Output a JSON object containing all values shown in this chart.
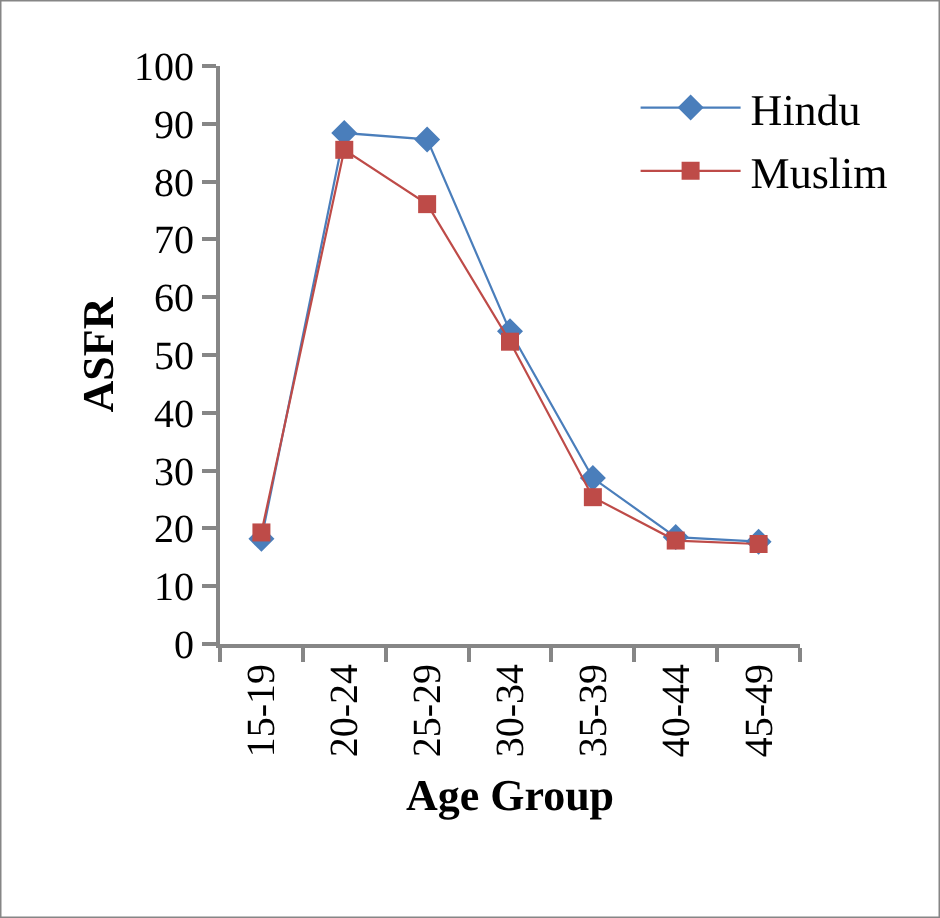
{
  "chart_data": {
    "type": "line",
    "xlabel": "Age Group",
    "ylabel": "ASFR",
    "categories": [
      "15-19",
      "20-24",
      "25-29",
      "30-34",
      "35-39",
      "40-44",
      "45-49"
    ],
    "series": [
      {
        "name": "Hindu",
        "color": "#4a7ebb",
        "marker": "diamond",
        "values": [
          18.2,
          88.4,
          87.3,
          54.1,
          28.7,
          18.5,
          17.7
        ]
      },
      {
        "name": "Muslim",
        "color": "#be4b48",
        "marker": "square",
        "values": [
          19.3,
          85.5,
          76.1,
          52.3,
          25.4,
          17.9,
          17.3
        ]
      }
    ],
    "ylim": [
      0,
      100
    ],
    "yticks": [
      0,
      10,
      20,
      30,
      40,
      50,
      60,
      70,
      80,
      90,
      100
    ],
    "grid": false,
    "legend": "top right",
    "line_style": "solid"
  }
}
